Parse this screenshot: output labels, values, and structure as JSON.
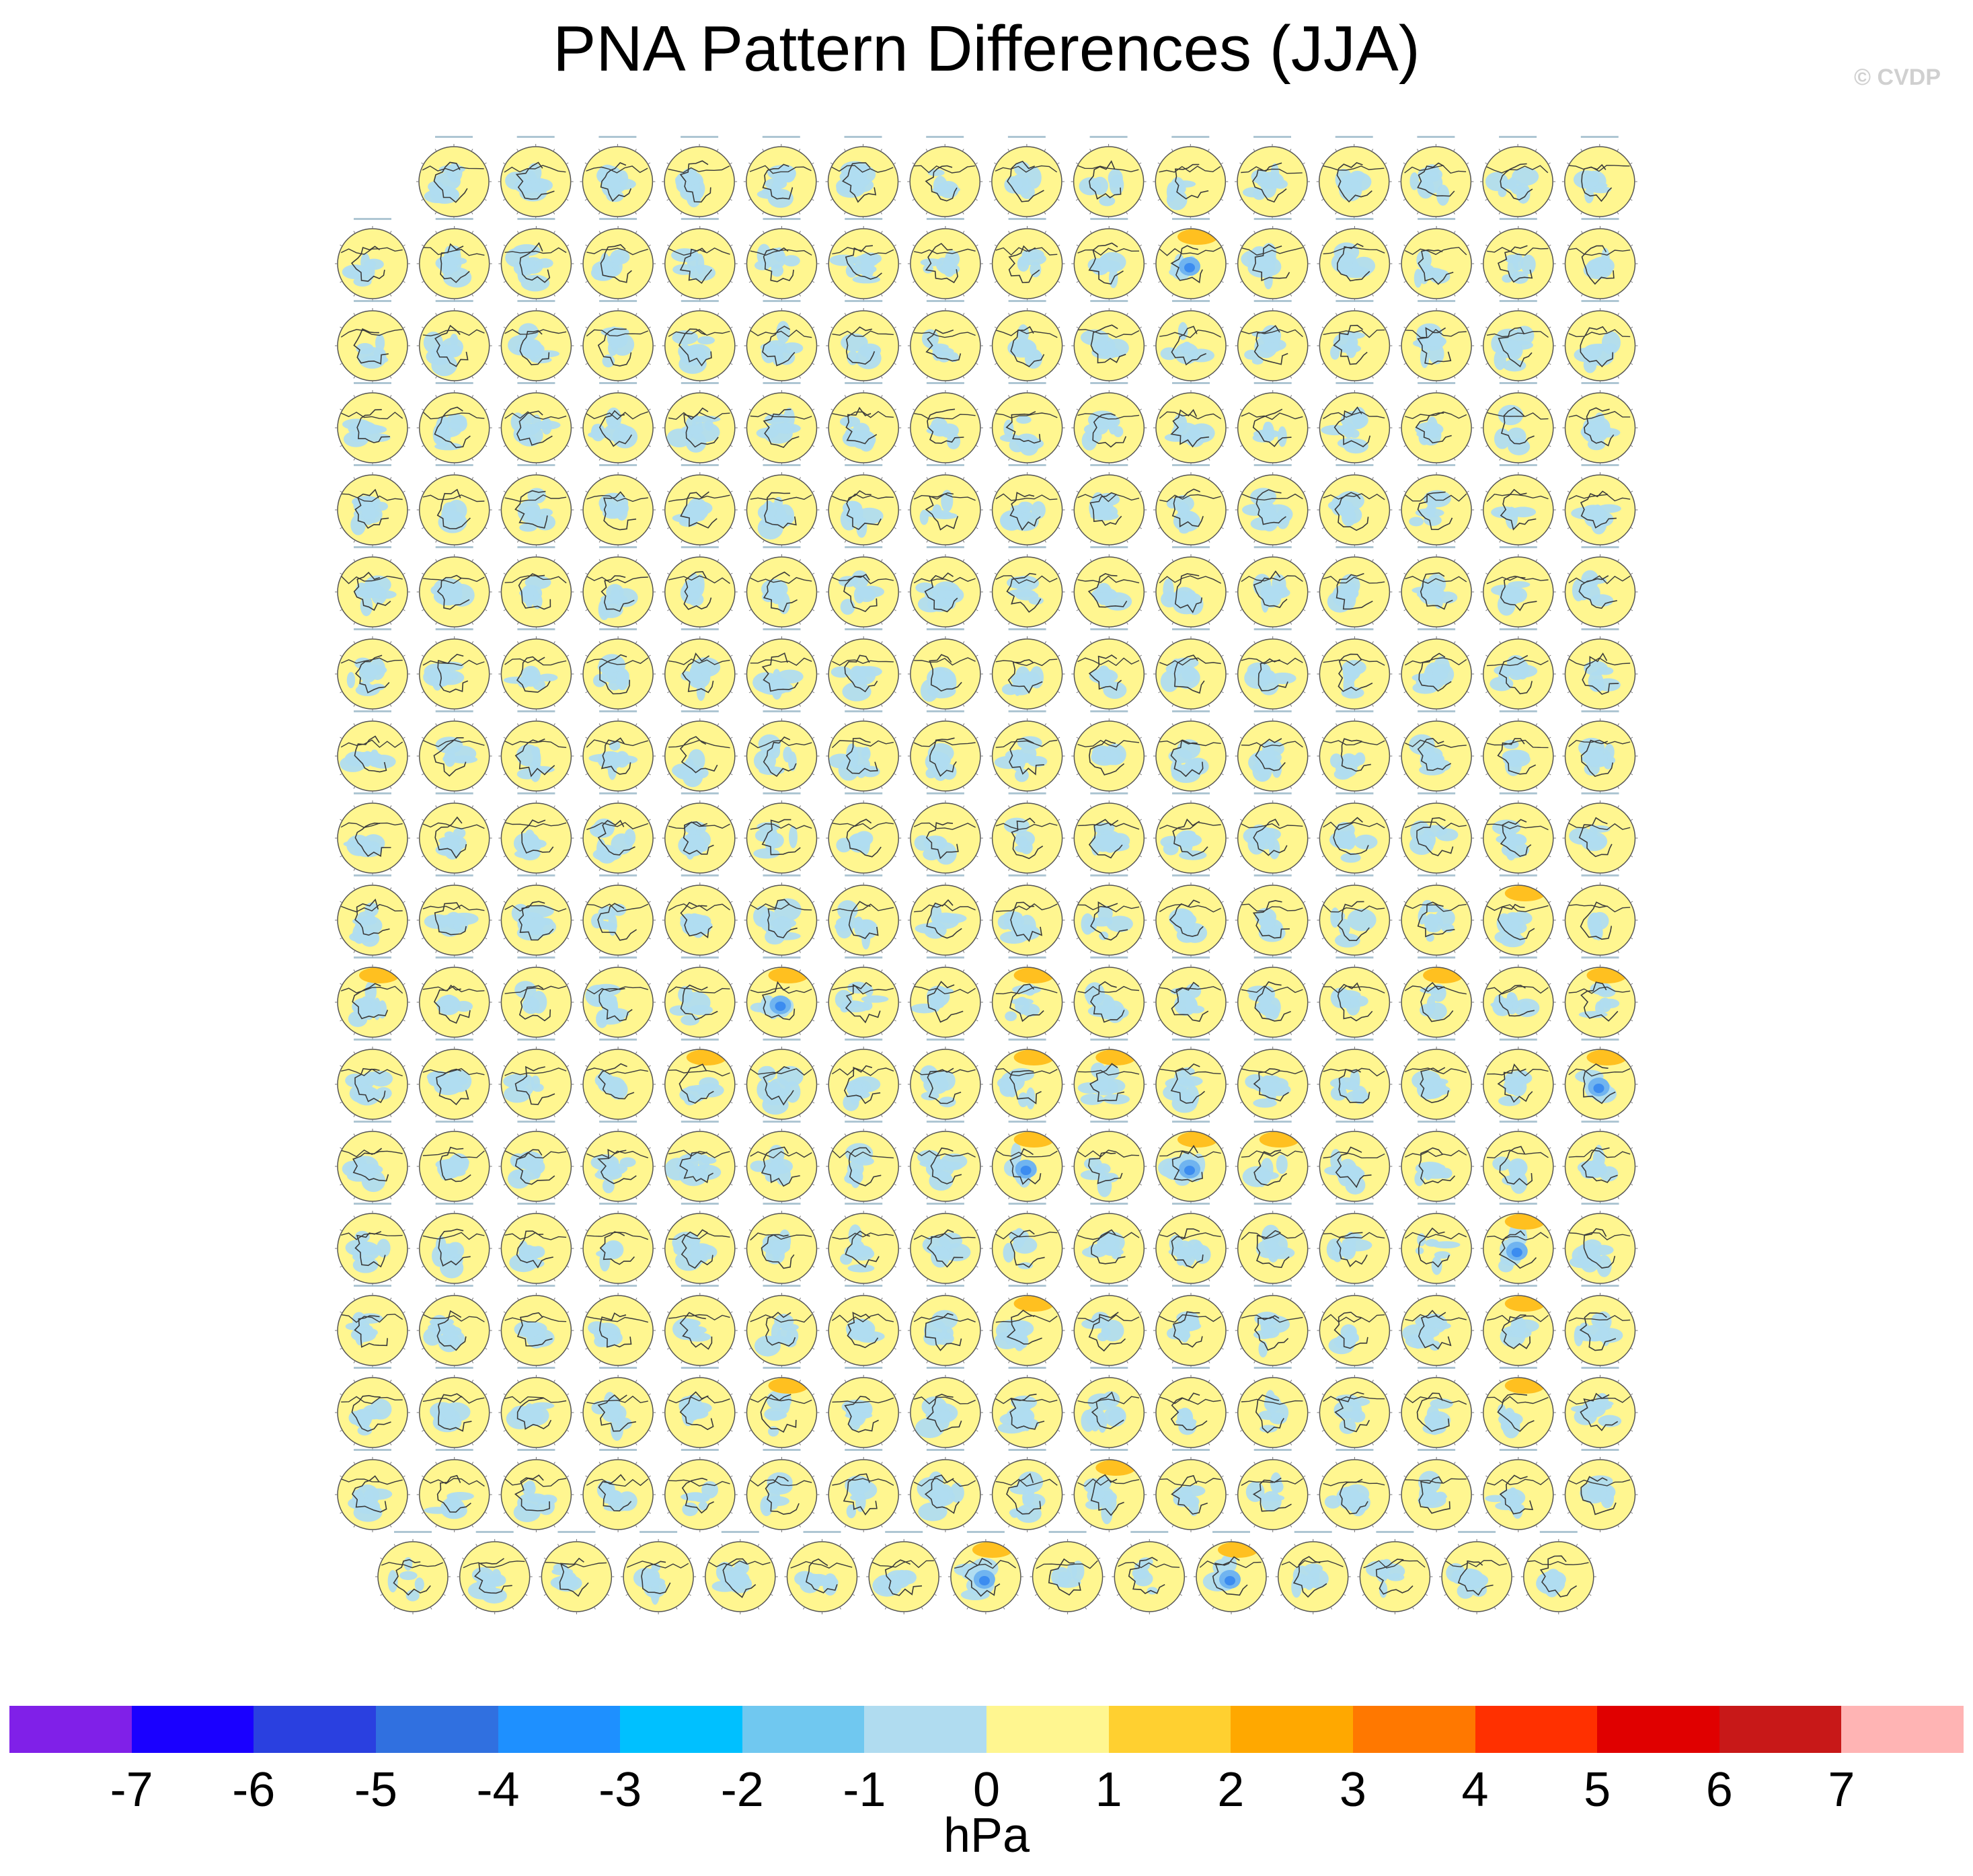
{
  "title": "PNA Pattern Differences (JJA)",
  "watermark": "© CVDP",
  "chart_data": {
    "type": "heatmap",
    "description_of_panels": "grid of small polar-stereographic map panels",
    "rows": [
      15,
      16,
      16,
      16,
      16,
      16,
      16,
      16,
      16,
      16,
      16,
      16,
      16,
      16,
      16,
      16,
      16,
      15
    ],
    "highlight_panels": [
      {
        "row": 1,
        "col": 10,
        "kind": "strong"
      },
      {
        "row": 9,
        "col": 14,
        "kind": "warm"
      },
      {
        "row": 10,
        "col": 0,
        "kind": "warm"
      },
      {
        "row": 10,
        "col": 5,
        "kind": "strong"
      },
      {
        "row": 10,
        "col": 8,
        "kind": "warm"
      },
      {
        "row": 10,
        "col": 13,
        "kind": "warm"
      },
      {
        "row": 10,
        "col": 15,
        "kind": "warm"
      },
      {
        "row": 11,
        "col": 4,
        "kind": "warm"
      },
      {
        "row": 11,
        "col": 8,
        "kind": "warm"
      },
      {
        "row": 11,
        "col": 9,
        "kind": "warm"
      },
      {
        "row": 11,
        "col": 15,
        "kind": "strong"
      },
      {
        "row": 12,
        "col": 8,
        "kind": "strong"
      },
      {
        "row": 12,
        "col": 10,
        "kind": "strong"
      },
      {
        "row": 12,
        "col": 11,
        "kind": "warm"
      },
      {
        "row": 13,
        "col": 14,
        "kind": "strong"
      },
      {
        "row": 14,
        "col": 8,
        "kind": "warm"
      },
      {
        "row": 14,
        "col": 14,
        "kind": "warm"
      },
      {
        "row": 15,
        "col": 5,
        "kind": "warm"
      },
      {
        "row": 15,
        "col": 14,
        "kind": "warm"
      },
      {
        "row": 16,
        "col": 9,
        "kind": "warm"
      },
      {
        "row": 17,
        "col": 7,
        "kind": "strong"
      },
      {
        "row": 17,
        "col": 10,
        "kind": "strong"
      }
    ],
    "colorbar": {
      "units": "hPa",
      "tick_labels": [
        "-7",
        "-6",
        "-5",
        "-4",
        "-3",
        "-2",
        "-1",
        "0",
        "1",
        "2",
        "3",
        "4",
        "5",
        "6",
        "7"
      ],
      "colors": [
        "#8020e8",
        "#1a00ff",
        "#2a40e0",
        "#3070e0",
        "#1e90ff",
        "#00c0ff",
        "#70c8f0",
        "#b0dcf0",
        "#fff690",
        "#ffd030",
        "#ffa800",
        "#ff7800",
        "#ff3000",
        "#e00000",
        "#c81818",
        "#ffb4b4"
      ]
    },
    "palette": {
      "positive_fill": "#fff690",
      "negative_fill": "#b0dcf0",
      "strong_negative": "#3c8cf0",
      "strong_positive": "#ffc020",
      "outline": "#555555"
    }
  }
}
